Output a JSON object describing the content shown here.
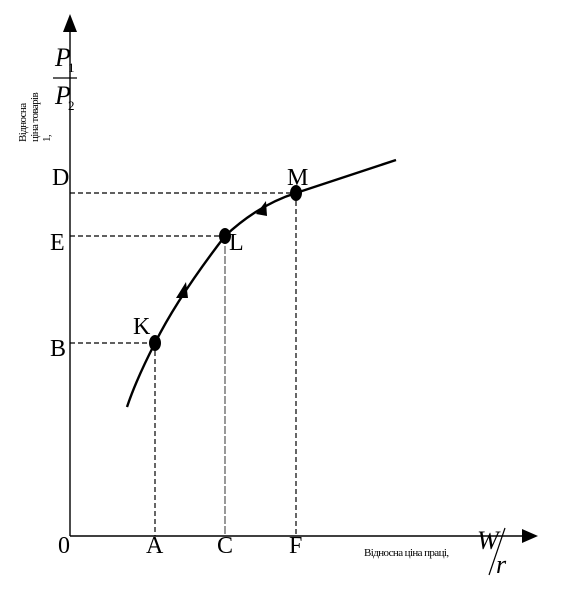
{
  "diagram": {
    "origin_label": "0",
    "x_axis_caption": "Відносна ціна праці,",
    "y_axis_caption_line1": "Відносна",
    "y_axis_caption_line2": "ціна товарів",
    "y_axis_caption_line3": "1,",
    "x_ratio_numerator": "W",
    "x_ratio_denominator": "r",
    "y_ratio_numerator": "P",
    "y_ratio_numerator_sub": "1",
    "y_ratio_denominator": "P",
    "y_ratio_denominator_sub": "2",
    "x_ticks": [
      "A",
      "C",
      "F"
    ],
    "y_ticks": [
      "D",
      "E",
      "B"
    ],
    "points": [
      {
        "label": "K",
        "x_tick": "A",
        "y_tick": "B"
      },
      {
        "label": "L",
        "x_tick": "C",
        "y_tick": "E"
      },
      {
        "label": "M",
        "x_tick": "F",
        "y_tick": "D"
      }
    ],
    "colors": {
      "ink": "#000000",
      "background": "#ffffff"
    }
  }
}
